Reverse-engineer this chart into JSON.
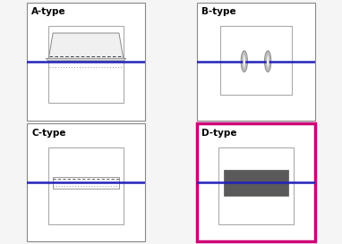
{
  "panels": [
    "A-type",
    "B-type",
    "C-type",
    "D-type"
  ],
  "wire_color": "#2222bb",
  "wire_lw": 1.8,
  "highlight_color": "#cc0077",
  "gray_light": "#aaaaaa",
  "gray_medium": "#888888",
  "gray_dark": "#555555",
  "gray_fill": "#5a5a5a",
  "background": "#f5f5f5",
  "panel_bg": "#ffffff",
  "label_fontsize": 7.5,
  "inner_box_edge": "#aaaaaa",
  "flap_edge": "#999999"
}
